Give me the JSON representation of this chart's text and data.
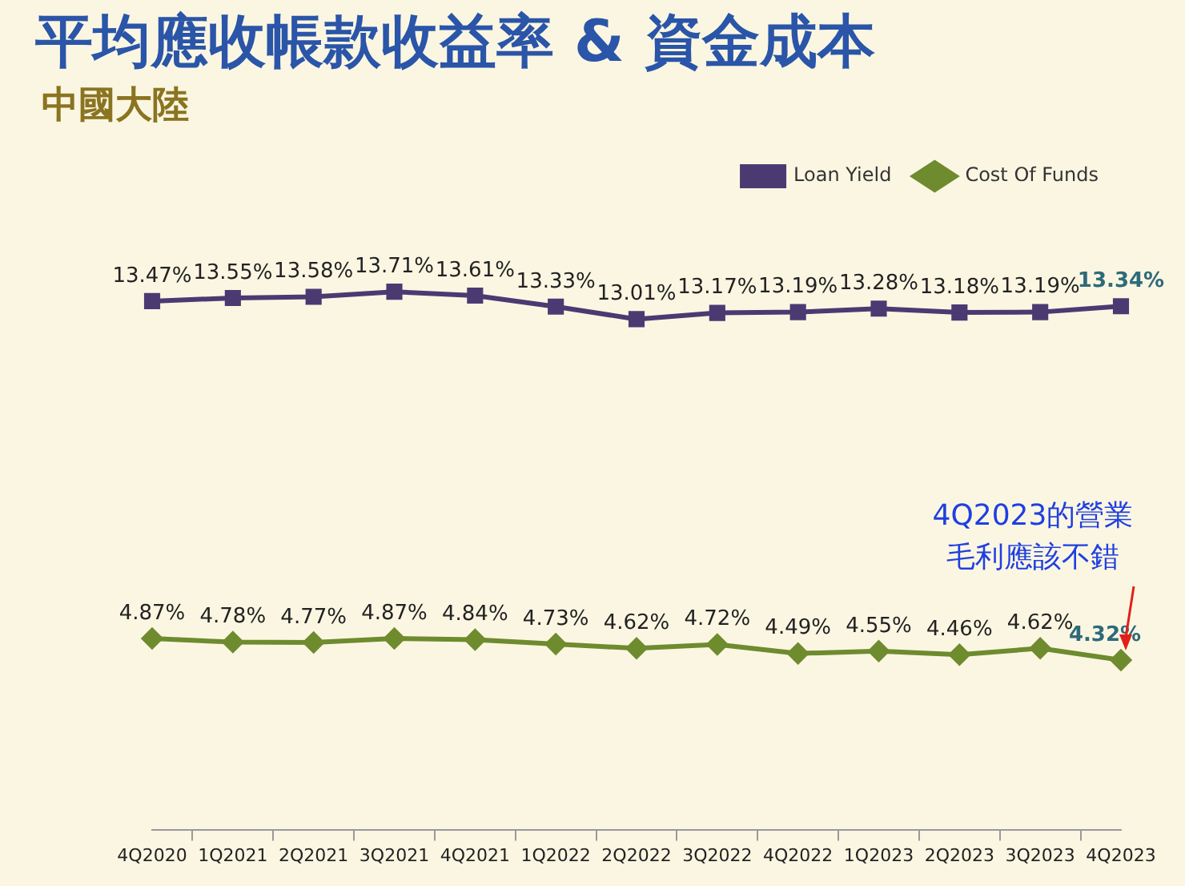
{
  "chart_data": {
    "type": "line",
    "title": "平均應收帳款收益率 & 資金成本",
    "subtitle": "中國大陸",
    "categories": [
      "4Q2020",
      "1Q2021",
      "2Q2021",
      "3Q2021",
      "4Q2021",
      "1Q2022",
      "2Q2022",
      "3Q2022",
      "4Q2022",
      "1Q2023",
      "2Q2023",
      "3Q2023",
      "4Q2023"
    ],
    "series": [
      {
        "name": "Loan Yield",
        "color": "#4b3a72",
        "marker": "square",
        "values": [
          13.47,
          13.55,
          13.58,
          13.71,
          13.61,
          13.33,
          13.01,
          13.17,
          13.19,
          13.28,
          13.18,
          13.19,
          13.34
        ],
        "value_labels": [
          "13.47%",
          "13.55%",
          "13.58%",
          "13.71%",
          "13.61%",
          "13.33%",
          "13.01%",
          "13.17%",
          "13.19%",
          "13.28%",
          "13.18%",
          "13.19%",
          "13.34%"
        ]
      },
      {
        "name": "Cost Of Funds",
        "color": "#6e8b2e",
        "marker": "diamond",
        "values": [
          4.87,
          4.78,
          4.77,
          4.87,
          4.84,
          4.73,
          4.62,
          4.72,
          4.49,
          4.55,
          4.46,
          4.62,
          4.32
        ],
        "value_labels": [
          "4.87%",
          "4.78%",
          "4.77%",
          "4.87%",
          "4.84%",
          "4.73%",
          "4.62%",
          "4.72%",
          "4.49%",
          "4.55%",
          "4.46%",
          "4.62%",
          "4.32%"
        ]
      }
    ],
    "tick_labels": "x",
    "grid": false,
    "legend": "top right",
    "line_style": "solid",
    "annotations": [
      {
        "text": "4Q2023的營業毛利應該不錯",
        "x": "4Q2023",
        "y": 4.32
      }
    ]
  }
}
